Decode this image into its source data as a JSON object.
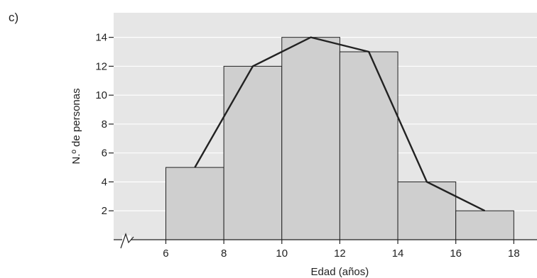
{
  "panel_label": "c)",
  "colors": {
    "plot_background": "#e6e6e6",
    "bar_fill": "#cfcfcf",
    "bar_stroke": "#222222",
    "polygon_stroke": "#222222",
    "gridline": "#ffffff"
  },
  "chart_data": {
    "type": "bar",
    "subtype": "histogram with frequency polygon",
    "title": "",
    "xlabel": "Edad (años)",
    "ylabel": "N.º de personas",
    "x_ticks": [
      6,
      8,
      10,
      12,
      14,
      16,
      18
    ],
    "y_ticks": [
      2,
      4,
      6,
      8,
      10,
      12,
      14
    ],
    "xlim": [
      4.2,
      18.8
    ],
    "ylim": [
      0,
      15.7
    ],
    "x_axis_break": true,
    "grid": "horizontal",
    "bins": [
      {
        "start": 6,
        "end": 8,
        "value": 5
      },
      {
        "start": 8,
        "end": 10,
        "value": 12
      },
      {
        "start": 10,
        "end": 12,
        "value": 14
      },
      {
        "start": 12,
        "end": 14,
        "value": 13
      },
      {
        "start": 14,
        "end": 16,
        "value": 4
      },
      {
        "start": 16,
        "end": 18,
        "value": 2
      }
    ],
    "polygon": [
      {
        "x": 7,
        "y": 5
      },
      {
        "x": 9,
        "y": 12
      },
      {
        "x": 11,
        "y": 14
      },
      {
        "x": 13,
        "y": 13
      },
      {
        "x": 15,
        "y": 4
      },
      {
        "x": 17,
        "y": 2
      }
    ]
  }
}
